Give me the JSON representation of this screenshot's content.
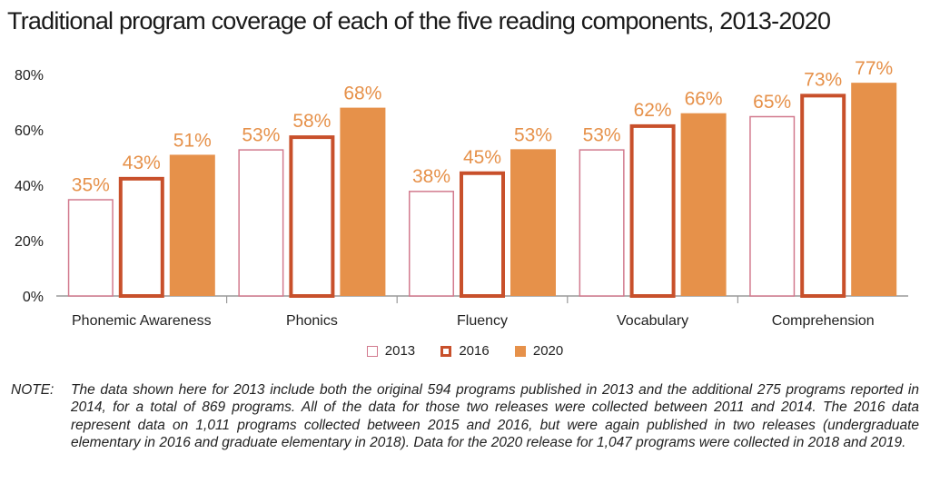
{
  "chart_data": {
    "type": "bar",
    "title": "Traditional program coverage of each of the five reading components, 2013-2020",
    "categories": [
      "Phonemic Awareness",
      "Phonics",
      "Fluency",
      "Vocabulary",
      "Comprehension"
    ],
    "series": [
      {
        "name": "2013",
        "values": [
          35,
          53,
          38,
          53,
          65
        ],
        "labels": [
          "35%",
          "53%",
          "38%",
          "53%",
          "65%"
        ]
      },
      {
        "name": "2016",
        "values": [
          43,
          58,
          45,
          62,
          73
        ],
        "labels": [
          "43%",
          "58%",
          "45%",
          "62%",
          "73%"
        ]
      },
      {
        "name": "2020",
        "values": [
          51,
          68,
          53,
          66,
          77
        ],
        "labels": [
          "51%",
          "68%",
          "53%",
          "66%",
          "77%"
        ]
      }
    ],
    "ylim": [
      0,
      80
    ],
    "yticks": [
      0,
      20,
      40,
      60,
      80
    ],
    "ytick_labels": [
      "0%",
      "20%",
      "40%",
      "60%",
      "80%"
    ],
    "legend_position": "bottom",
    "grid": false
  },
  "colors": {
    "s2013_stroke": "#d27a8e",
    "s2016_stroke": "#c8502b",
    "s2020_fill": "#e6914a",
    "label": "#e6914a"
  },
  "note": {
    "label": "NOTE:",
    "text": "The data shown here for 2013 include both the original 594 programs published in 2013 and the additional 275 programs reported in 2014, for a total of 869 programs. All of the data for those two releases were collected between 2011 and 2014. The 2016 data represent data on 1,011 programs collected between 2015 and 2016, but were again published in two releases (undergraduate elementary in 2016 and graduate elementary in 2018). Data for the 2020 release for 1,047 programs were collected in 2018 and 2019."
  }
}
